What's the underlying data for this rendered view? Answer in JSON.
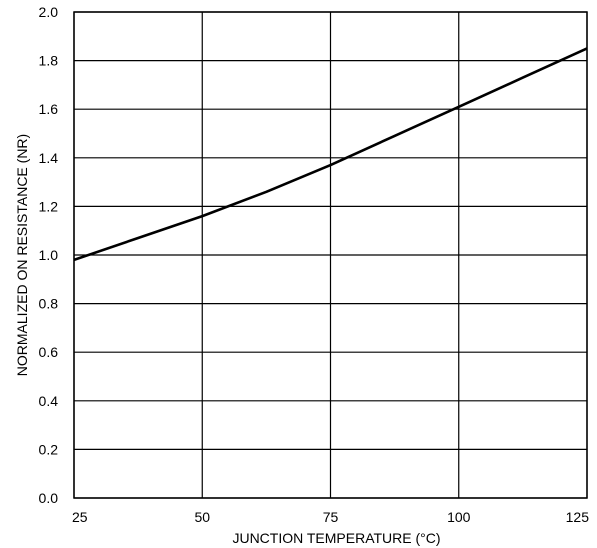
{
  "chart_data": {
    "type": "line",
    "title": "",
    "xlabel": "JUNCTION TEMPERATURE (°C)",
    "ylabel": "NORMALIZED ON RESISTANCE (NR)",
    "xlim": [
      25,
      125
    ],
    "ylim": [
      0.0,
      2.0
    ],
    "x_ticks": [
      "25",
      "50",
      "75",
      "100",
      "125"
    ],
    "y_ticks": [
      "0.0",
      "0.2",
      "0.4",
      "0.6",
      "0.8",
      "1.0",
      "1.2",
      "1.4",
      "1.6",
      "1.8",
      "2.0"
    ],
    "grid": true,
    "series": [
      {
        "x": [
          25,
          37.5,
          50,
          62.5,
          75,
          87.5,
          100,
          112.5,
          125
        ],
        "y": [
          0.98,
          1.07,
          1.16,
          1.26,
          1.37,
          1.49,
          1.61,
          1.73,
          1.85
        ]
      }
    ],
    "colors": {
      "line": "#000000",
      "grid": "#000000"
    }
  }
}
